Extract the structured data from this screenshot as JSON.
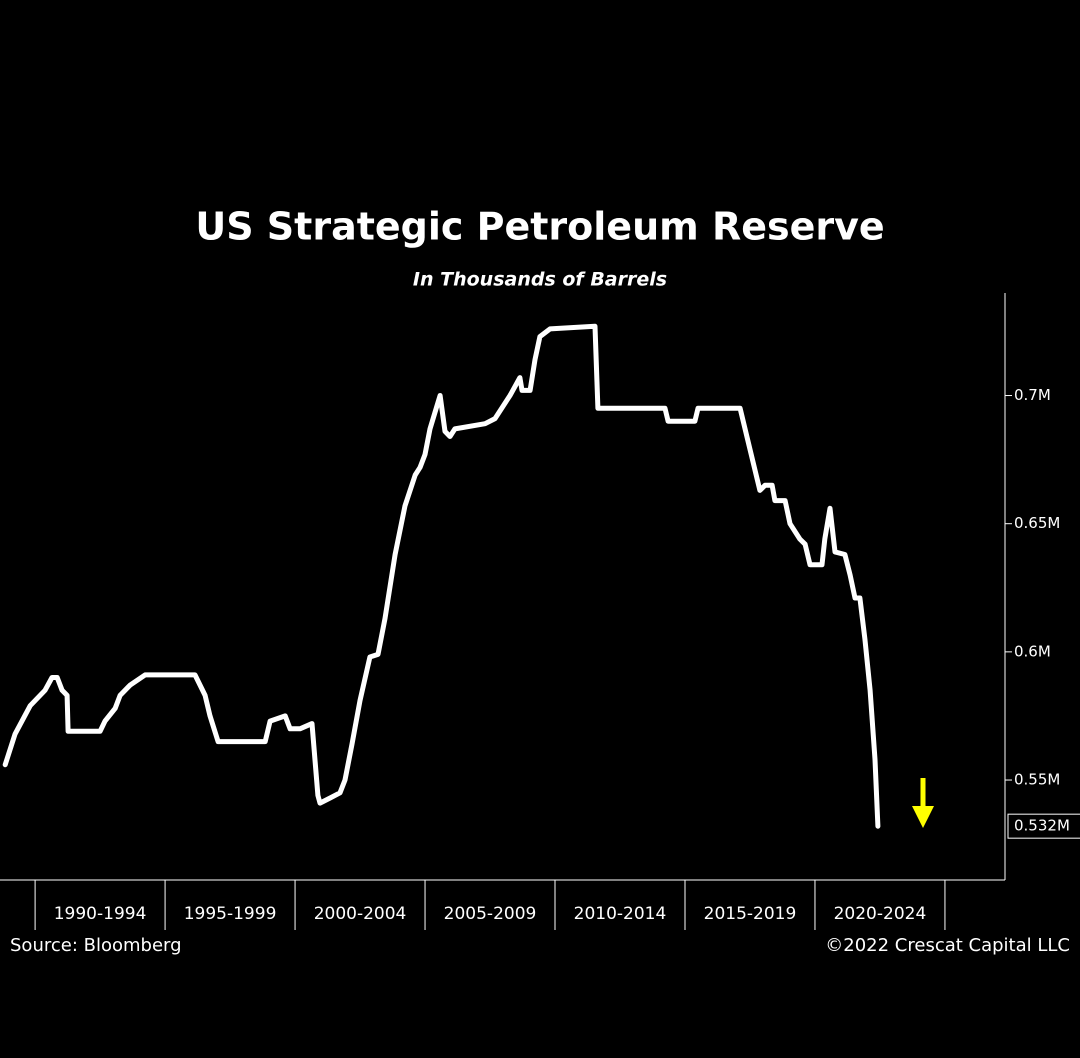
{
  "chart_data": {
    "type": "line",
    "title": "US Strategic Petroleum Reserve",
    "subtitle": "In Thousands of Barrels",
    "source": "Source: Bloomberg",
    "credit": "©2022 Crescat Capital LLC",
    "xlim": [
      1988.65,
      2027.31
    ],
    "xticks": [
      1990,
      1995,
      2000,
      2005,
      2010,
      2015,
      2020,
      2025
    ],
    "period_labels": [
      "1990-1994",
      "1995-1999",
      "2000-2004",
      "2005-2009",
      "2010-2014",
      "2015-2019",
      "2020-2024"
    ],
    "ylim": [
      0.511,
      0.74
    ],
    "yticks": [
      {
        "value": 0.55,
        "label": "0.55M"
      },
      {
        "value": 0.6,
        "label": "0.6M"
      },
      {
        "value": 0.65,
        "label": "0.65M"
      },
      {
        "value": 0.7,
        "label": "0.7M"
      }
    ],
    "last_label": {
      "value": 0.532,
      "label": "0.532M"
    },
    "series": [
      {
        "color": "#ffffff",
        "x": [
          1988.85,
          1989.23,
          1989.81,
          1990.38,
          1990.65,
          1990.85,
          1991.04,
          1991.23,
          1991.27,
          1992.5,
          1992.69,
          1993.08,
          1993.27,
          1993.65,
          1994.23,
          1996.15,
          1996.54,
          1996.73,
          1997.04,
          1998.85,
          1999.04,
          1999.62,
          1999.81,
          2000.19,
          2000.65,
          2000.88,
          2000.96,
          2001.35,
          2001.73,
          2001.92,
          2002.19,
          2002.5,
          2002.88,
          2003.19,
          2003.46,
          2003.85,
          2004.23,
          2004.62,
          2004.81,
          2005.0,
          2005.19,
          2005.58,
          2005.77,
          2005.96,
          2006.15,
          2007.31,
          2007.69,
          2008.27,
          2008.65,
          2008.73,
          2009.04,
          2009.23,
          2009.42,
          2009.81,
          2011.54,
          2011.65,
          2012.69,
          2013.27,
          2014.23,
          2014.35,
          2015.38,
          2015.5,
          2017.12,
          2017.5,
          2017.88,
          2018.08,
          2018.35,
          2018.46,
          2018.85,
          2019.04,
          2019.42,
          2019.62,
          2019.81,
          2020.27,
          2020.38,
          2020.58,
          2020.77,
          2021.15,
          2021.35,
          2021.54,
          2021.73,
          2021.92,
          2022.12,
          2022.31,
          2022.42
        ],
        "values": [
          0.556,
          0.568,
          0.579,
          0.585,
          0.59,
          0.59,
          0.585,
          0.583,
          0.569,
          0.569,
          0.573,
          0.578,
          0.583,
          0.587,
          0.591,
          0.591,
          0.583,
          0.575,
          0.565,
          0.565,
          0.573,
          0.575,
          0.57,
          0.57,
          0.572,
          0.544,
          0.541,
          0.543,
          0.545,
          0.55,
          0.564,
          0.581,
          0.598,
          0.599,
          0.613,
          0.638,
          0.657,
          0.669,
          0.672,
          0.677,
          0.687,
          0.7,
          0.686,
          0.684,
          0.687,
          0.689,
          0.691,
          0.7,
          0.707,
          0.702,
          0.702,
          0.714,
          0.723,
          0.726,
          0.727,
          0.695,
          0.695,
          0.695,
          0.695,
          0.69,
          0.69,
          0.695,
          0.695,
          0.679,
          0.663,
          0.665,
          0.665,
          0.659,
          0.659,
          0.65,
          0.644,
          0.642,
          0.634,
          0.634,
          0.644,
          0.656,
          0.639,
          0.638,
          0.63,
          0.621,
          0.621,
          0.605,
          0.585,
          0.558,
          0.532
        ]
      }
    ]
  }
}
